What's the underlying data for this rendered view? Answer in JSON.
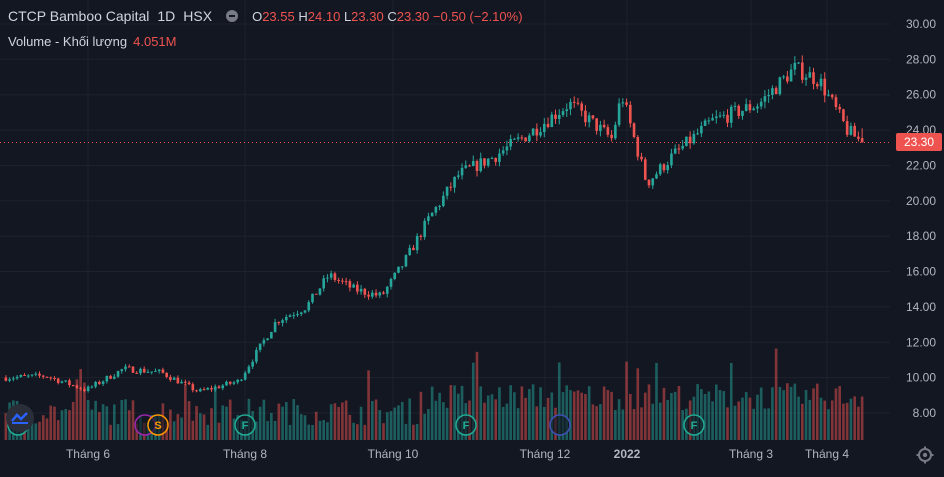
{
  "header": {
    "symbol_name": "CTCP Bamboo Capital",
    "interval": "1D",
    "exchange": "HSX",
    "ohlc": {
      "open_label": "O",
      "open": "23.55",
      "high_label": "H",
      "high": "24.10",
      "low_label": "L",
      "low": "23.30",
      "close_label": "C",
      "close": "23.30",
      "change": "−0.50 (−2.10%)"
    }
  },
  "volume_legend": {
    "label": "Volume - Khối lượng",
    "value": "4.051M"
  },
  "price_axis": {
    "labels": [
      "30.00",
      "28.00",
      "26.00",
      "24.00",
      "22.00",
      "20.00",
      "18.00",
      "16.00",
      "14.00",
      "12.00",
      "10.00",
      "8.00"
    ],
    "current_price": "23.30"
  },
  "time_axis": {
    "labels": [
      "Tháng 6",
      "Tháng 8",
      "Tháng 10",
      "Tháng 12",
      "2022",
      "Tháng 3",
      "Tháng 4"
    ]
  },
  "event_markers": [
    {
      "letter": "F",
      "kind": "financials",
      "color": "#22ab94"
    },
    {
      "letter": "",
      "kind": "split",
      "color": "#9c27b0"
    },
    {
      "letter": "S",
      "kind": "split",
      "color": "#ff9800"
    },
    {
      "letter": "F",
      "kind": "financials",
      "color": "#22ab94"
    },
    {
      "letter": "F",
      "kind": "financials",
      "color": "#22ab94"
    },
    {
      "letter": "",
      "kind": "dividend",
      "color": "#3f51b5"
    },
    {
      "letter": "F",
      "kind": "financials",
      "color": "#22ab94"
    }
  ],
  "colors": {
    "up": "#26a69a",
    "down": "#ef5350",
    "background": "#131722",
    "grid": "#1e222d",
    "axis_text": "#b2b5be"
  },
  "chart_data": {
    "type": "candlestick",
    "ylim": [
      7,
      30.5
    ],
    "price_trend": [
      [
        "2021-05-04",
        10.0
      ],
      [
        "2021-05-20",
        10.1
      ],
      [
        "2021-06-05",
        9.3
      ],
      [
        "2021-06-20",
        10.5
      ],
      [
        "2021-07-05",
        10.3
      ],
      [
        "2021-07-20",
        9.2
      ],
      [
        "2021-08-05",
        9.8
      ],
      [
        "2021-08-20",
        13.2
      ],
      [
        "2021-09-01",
        14.0
      ],
      [
        "2021-09-10",
        15.8
      ],
      [
        "2021-09-20",
        15.0
      ],
      [
        "2021-10-01",
        14.6
      ],
      [
        "2021-10-10",
        16.5
      ],
      [
        "2021-10-20",
        19.0
      ],
      [
        "2021-11-01",
        21.5
      ],
      [
        "2021-11-15",
        22.5
      ],
      [
        "2021-12-01",
        24.0
      ],
      [
        "2021-12-15",
        25.5
      ],
      [
        "2022-01-01",
        23.5
      ],
      [
        "2022-01-05",
        26.0
      ],
      [
        "2022-01-15",
        21.0
      ],
      [
        "2022-01-25",
        22.5
      ],
      [
        "2022-02-10",
        24.5
      ],
      [
        "2022-03-01",
        25.5
      ],
      [
        "2022-03-15",
        27.5
      ],
      [
        "2022-03-25",
        26.8
      ],
      [
        "2022-04-05",
        24.0
      ],
      [
        "2022-04-11",
        23.3
      ]
    ],
    "last_candle": {
      "open": 23.55,
      "high": 24.1,
      "low": 23.3,
      "close": 23.3
    },
    "last_volume": "4.051M"
  }
}
